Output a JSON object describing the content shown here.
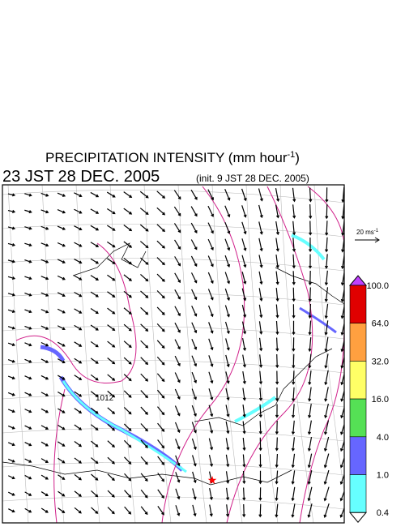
{
  "header": {
    "title_main": "PRECIPITATION INTENSITY (mm hour",
    "title_sup": "-1",
    "title_end": ")",
    "valid_time": "23 JST 28 DEC. 2005",
    "init_time": "(init. 9 JST 28 DEC. 2005)"
  },
  "wind_scale": {
    "label_main": "20 ms",
    "label_sup": "-1"
  },
  "map": {
    "isobar_label": "1012"
  },
  "colorbar": {
    "levels": [
      {
        "label": "100.0",
        "color": "#e00000"
      },
      {
        "label": "64.0",
        "color": "#ffa040"
      },
      {
        "label": "32.0",
        "color": "#ffff66"
      },
      {
        "label": "16.0",
        "color": "#55e055"
      },
      {
        "label": "4.0",
        "color": "#6666ff"
      },
      {
        "label": "1.0",
        "color": "#66ffff"
      },
      {
        "label": "0.4",
        "color": "#ffffff"
      }
    ],
    "top_color": "#c040ff"
  }
}
